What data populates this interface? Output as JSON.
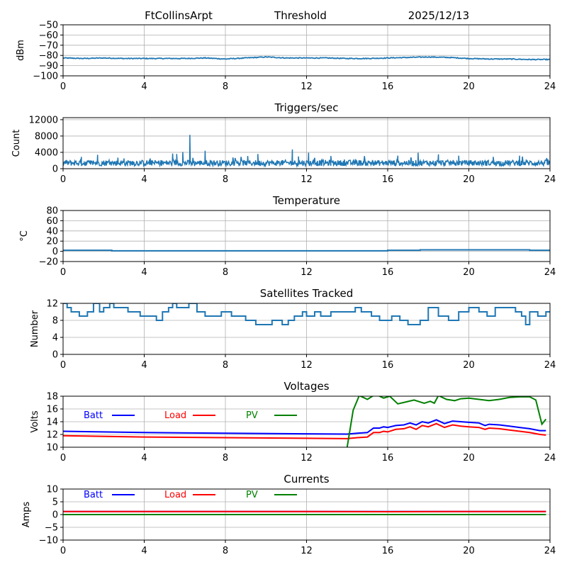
{
  "header": {
    "station": "FtCollinsArpt",
    "mode": "Threshold",
    "date": "2025/12/13"
  },
  "colors": {
    "series_default": "#1f77b4",
    "batt": "#0000ff",
    "load": "#ff0000",
    "pv": "#008000",
    "grid": "#b0b0b0"
  },
  "chart_data": [
    {
      "id": "threshold",
      "type": "line",
      "title": "",
      "xlabel": "",
      "ylabel": "dBm",
      "xlim": [
        0,
        24
      ],
      "ylim": [
        -100,
        -50
      ],
      "xticks": [
        0,
        4,
        8,
        12,
        16,
        20,
        24
      ],
      "yticks": [
        -100,
        -90,
        -80,
        -70,
        -60,
        -50
      ],
      "ytick_labels": [
        "−100",
        "−90",
        "−80",
        "−70",
        "−60",
        "−50"
      ],
      "grid": true,
      "series": [
        {
          "name": "threshold",
          "color": "#1f77b4",
          "x": [
            0,
            1,
            2,
            3,
            4,
            5,
            6,
            7,
            8,
            9,
            10,
            11,
            12,
            13,
            14,
            15,
            16,
            17,
            18,
            19,
            20,
            21,
            22,
            23,
            24
          ],
          "y": [
            -82.5,
            -83,
            -82.5,
            -83,
            -83,
            -83,
            -83,
            -82.5,
            -83.5,
            -82.5,
            -81.5,
            -82.5,
            -82.5,
            -82.5,
            -83,
            -83,
            -82.5,
            -82,
            -81.5,
            -82,
            -83,
            -83.5,
            -83.5,
            -84,
            -84
          ]
        }
      ]
    },
    {
      "id": "triggers",
      "type": "line",
      "title": "Triggers/sec",
      "xlabel": "",
      "ylabel": "Count",
      "xlim": [
        0,
        24
      ],
      "ylim": [
        0,
        12500
      ],
      "xticks": [
        0,
        4,
        8,
        12,
        16,
        20,
        24
      ],
      "yticks": [
        0,
        4000,
        8000,
        12000
      ],
      "ytick_labels": [
        "0",
        "4000",
        "8000",
        "12000"
      ],
      "grid": true,
      "baseline": 1400,
      "spikes": [
        {
          "x": 0.9,
          "y": 2900
        },
        {
          "x": 1.7,
          "y": 3400
        },
        {
          "x": 2.7,
          "y": 2700
        },
        {
          "x": 3.0,
          "y": 2500
        },
        {
          "x": 5.4,
          "y": 3700
        },
        {
          "x": 5.6,
          "y": 3600
        },
        {
          "x": 5.9,
          "y": 4100
        },
        {
          "x": 6.25,
          "y": 8300
        },
        {
          "x": 7.0,
          "y": 4400
        },
        {
          "x": 9.1,
          "y": 3100
        },
        {
          "x": 9.6,
          "y": 3600
        },
        {
          "x": 11.3,
          "y": 4700
        },
        {
          "x": 11.6,
          "y": 3000
        },
        {
          "x": 12.1,
          "y": 3900
        },
        {
          "x": 13.2,
          "y": 3100
        },
        {
          "x": 16.5,
          "y": 3200
        },
        {
          "x": 17.5,
          "y": 3900
        },
        {
          "x": 18.5,
          "y": 3500
        },
        {
          "x": 19.5,
          "y": 3200
        },
        {
          "x": 21.2,
          "y": 2900
        },
        {
          "x": 22.5,
          "y": 3200
        },
        {
          "x": 23.9,
          "y": 2300
        }
      ],
      "series": [
        {
          "name": "triggers",
          "color": "#1f77b4"
        }
      ]
    },
    {
      "id": "temperature",
      "type": "line",
      "title": "Temperature",
      "xlabel": "",
      "ylabel": "°C",
      "xlim": [
        0,
        24
      ],
      "ylim": [
        -20,
        80
      ],
      "xticks": [
        0,
        4,
        8,
        12,
        16,
        20,
        24
      ],
      "yticks": [
        -20,
        0,
        20,
        40,
        60,
        80
      ],
      "ytick_labels": [
        "−20",
        "0",
        "20",
        "40",
        "60",
        "80"
      ],
      "grid": true,
      "series": [
        {
          "name": "temperature",
          "color": "#1f77b4",
          "step": true,
          "x": [
            0,
            2.4,
            2.4,
            16,
            16,
            17.6,
            17.6,
            23,
            23,
            24
          ],
          "y": [
            2,
            2,
            1,
            1,
            2,
            2,
            3,
            3,
            2,
            2
          ]
        }
      ]
    },
    {
      "id": "satellites",
      "type": "line",
      "title": "Satellites Tracked",
      "xlabel": "",
      "ylabel": "Number",
      "xlim": [
        0,
        24
      ],
      "ylim": [
        0,
        12
      ],
      "xticks": [
        0,
        4,
        8,
        12,
        16,
        20,
        24
      ],
      "yticks": [
        0,
        4,
        8,
        12
      ],
      "ytick_labels": [
        "0",
        "4",
        "8",
        "12"
      ],
      "grid": true,
      "series": [
        {
          "name": "satellites",
          "color": "#1f77b4",
          "step": true,
          "x": [
            0,
            0.2,
            0.4,
            0.6,
            0.8,
            1.2,
            1.5,
            1.8,
            2.0,
            2.3,
            2.5,
            2.8,
            3.2,
            3.8,
            4.1,
            4.6,
            4.9,
            5.2,
            5.4,
            5.6,
            6.2,
            6.6,
            7.0,
            7.5,
            7.8,
            8.3,
            8.8,
            9.0,
            9.5,
            10.0,
            10.3,
            10.8,
            11.1,
            11.4,
            11.8,
            12.0,
            12.4,
            12.7,
            13.2,
            13.8,
            14.4,
            14.7,
            15.2,
            15.6,
            16.2,
            16.6,
            17.0,
            17.6,
            18.0,
            18.5,
            19.0,
            19.5,
            20.0,
            20.5,
            20.9,
            21.3,
            22.3,
            22.6,
            22.8,
            23.0,
            23.4,
            23.8,
            24
          ],
          "y": [
            12,
            11,
            10,
            10,
            9,
            10,
            12,
            10,
            11,
            12,
            11,
            11,
            10,
            9,
            9,
            8,
            10,
            11,
            12,
            11,
            12,
            10,
            9,
            9,
            10,
            9,
            9,
            8,
            7,
            7,
            8,
            7,
            8,
            9,
            10,
            9,
            10,
            9,
            10,
            10,
            11,
            10,
            9,
            8,
            9,
            8,
            7,
            8,
            11,
            9,
            8,
            10,
            11,
            10,
            9,
            11,
            10,
            9,
            7,
            10,
            9,
            10,
            10
          ]
        }
      ]
    },
    {
      "id": "voltages",
      "type": "line",
      "title": "Voltages",
      "xlabel": "",
      "ylabel": "Volts",
      "xlim": [
        0,
        24
      ],
      "ylim": [
        10,
        18
      ],
      "xticks": [
        0,
        4,
        8,
        12,
        16,
        20,
        24
      ],
      "yticks": [
        10,
        12,
        14,
        16,
        18
      ],
      "ytick_labels": [
        "10",
        "12",
        "14",
        "16",
        "18"
      ],
      "grid": true,
      "legend": [
        {
          "label": "Batt",
          "color": "#0000ff"
        },
        {
          "label": "Load",
          "color": "#ff0000"
        },
        {
          "label": "PV",
          "color": "#008000"
        }
      ],
      "legend_placement": "top-left",
      "series": [
        {
          "name": "Batt",
          "color": "#0000ff",
          "x": [
            0,
            4,
            8,
            12,
            14,
            14.5,
            15,
            15.3,
            15.6,
            15.8,
            16,
            16.4,
            16.8,
            17.1,
            17.4,
            17.7,
            18,
            18.4,
            18.8,
            19.2,
            19.6,
            20,
            20.5,
            20.8,
            21,
            21.5,
            22,
            22.5,
            23,
            23.5,
            23.8
          ],
          "y": [
            12.5,
            12.3,
            12.2,
            12.1,
            12.05,
            12.2,
            12.3,
            13.0,
            13.0,
            13.2,
            13.1,
            13.4,
            13.5,
            13.8,
            13.5,
            14.0,
            13.8,
            14.3,
            13.7,
            14.1,
            14.0,
            13.9,
            13.8,
            13.4,
            13.6,
            13.5,
            13.3,
            13.1,
            12.9,
            12.6,
            12.6
          ]
        },
        {
          "name": "Load",
          "color": "#ff0000",
          "x": [
            0,
            4,
            8,
            12,
            14,
            14.5,
            15,
            15.3,
            15.6,
            15.8,
            16,
            16.4,
            16.8,
            17.1,
            17.4,
            17.7,
            18,
            18.4,
            18.8,
            19.2,
            19.6,
            20,
            20.5,
            20.8,
            21,
            21.5,
            22,
            22.5,
            23,
            23.5,
            23.8
          ],
          "y": [
            11.8,
            11.6,
            11.5,
            11.4,
            11.35,
            11.5,
            11.6,
            12.3,
            12.3,
            12.5,
            12.4,
            12.8,
            12.9,
            13.2,
            12.8,
            13.4,
            13.2,
            13.7,
            13.1,
            13.5,
            13.3,
            13.2,
            13.1,
            12.8,
            13.0,
            12.9,
            12.7,
            12.5,
            12.3,
            12.0,
            11.9
          ]
        },
        {
          "name": "PV",
          "color": "#008000",
          "x": [
            14.0,
            14.3,
            14.6,
            15.0,
            15.4,
            15.8,
            16.1,
            16.5,
            16.9,
            17.3,
            17.8,
            18.1,
            18.3,
            18.5,
            18.9,
            19.3,
            19.6,
            20.0,
            20.5,
            21.0,
            21.5,
            22.0,
            22.5,
            23.0,
            23.3,
            23.6,
            23.8
          ],
          "y": [
            10.0,
            15.8,
            18.1,
            17.5,
            18.3,
            17.7,
            18.0,
            16.8,
            17.1,
            17.4,
            16.9,
            17.2,
            16.9,
            18.1,
            17.5,
            17.3,
            17.6,
            17.7,
            17.5,
            17.3,
            17.5,
            17.8,
            17.9,
            17.9,
            17.4,
            13.6,
            14.4
          ]
        }
      ]
    },
    {
      "id": "currents",
      "type": "line",
      "title": "Currents",
      "xlabel": "",
      "ylabel": "Amps",
      "xlim": [
        0,
        24
      ],
      "ylim": [
        -10,
        10
      ],
      "xticks": [
        0,
        4,
        8,
        12,
        16,
        20,
        24
      ],
      "yticks": [
        -10,
        -5,
        0,
        5,
        10
      ],
      "ytick_labels": [
        "−10",
        "−5",
        "0",
        "5",
        "10"
      ],
      "grid": true,
      "legend": [
        {
          "label": "Batt",
          "color": "#0000ff"
        },
        {
          "label": "Load",
          "color": "#ff0000"
        },
        {
          "label": "PV",
          "color": "#008000"
        }
      ],
      "legend_placement": "top-left",
      "series": [
        {
          "name": "Batt",
          "color": "#0000ff",
          "x": [
            0,
            23.8
          ],
          "y": [
            1.2,
            1.2
          ]
        },
        {
          "name": "Load",
          "color": "#ff0000",
          "x": [
            0,
            4,
            8,
            12,
            16,
            20,
            23.8
          ],
          "y": [
            1.2,
            1.2,
            1.2,
            1.2,
            1.1,
            1.2,
            1.2
          ]
        },
        {
          "name": "PV",
          "color": "#008000",
          "x": [
            0,
            23.8
          ],
          "y": [
            0,
            0
          ]
        }
      ]
    }
  ]
}
